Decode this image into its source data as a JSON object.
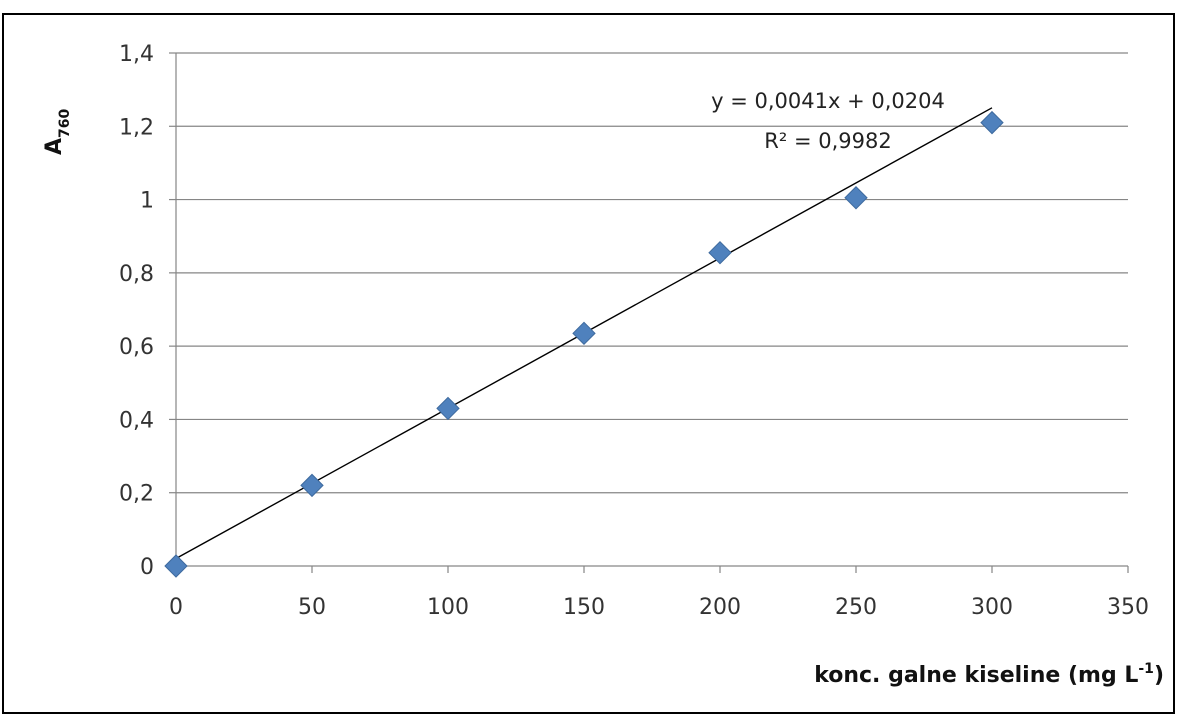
{
  "chart_data": {
    "type": "scatter",
    "title": "",
    "xlabel": "konc. galne kiseline (mg L",
    "xlabel_sup": "-1",
    "xlabel_tail": ")",
    "ylabel_main": "A",
    "ylabel_sub": "760",
    "xlim": [
      0,
      350
    ],
    "ylim": [
      0,
      1.4
    ],
    "grid": "horizontal",
    "x_ticks": [
      0,
      50,
      100,
      150,
      200,
      250,
      300,
      350
    ],
    "x_tick_labels": [
      "0",
      "50",
      "100",
      "150",
      "200",
      "250",
      "300",
      "350"
    ],
    "y_ticks": [
      0,
      0.2,
      0.4,
      0.6,
      0.8,
      1.0,
      1.2,
      1.4
    ],
    "y_tick_labels": [
      "0",
      "0,2",
      "0,4",
      "0,6",
      "0,8",
      "1",
      "1,2",
      "1,4"
    ],
    "series": [
      {
        "x": [
          0,
          50,
          100,
          150,
          200,
          250,
          300
        ],
        "values": [
          0,
          0.22,
          0.43,
          0.635,
          0.855,
          1.005,
          1.21
        ],
        "color": "#4F81BD",
        "marker": "diamond"
      }
    ],
    "trendline": {
      "slope": 0.0041,
      "intercept": 0.0204,
      "x_range": [
        0,
        300
      ],
      "color": "#000000",
      "equation": "y = 0,0041x + 0,0204",
      "r_squared": "R² = 0,9982"
    }
  }
}
